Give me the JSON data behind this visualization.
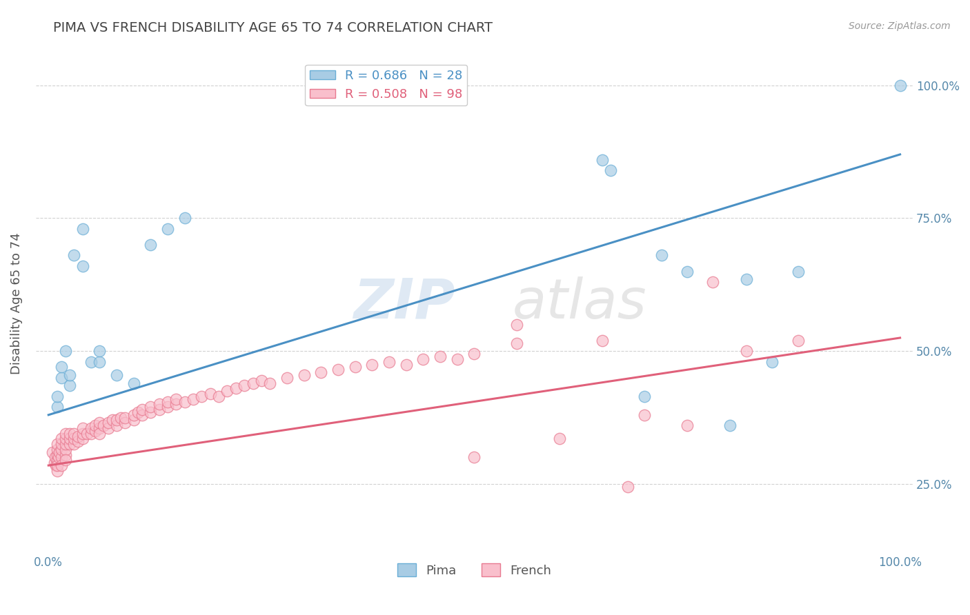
{
  "title": "PIMA VS FRENCH DISABILITY AGE 65 TO 74 CORRELATION CHART",
  "source_text": "Source: ZipAtlas.com",
  "ylabel": "Disability Age 65 to 74",
  "watermark": "ZIPatlas",
  "pima_color": "#a8cce4",
  "french_color": "#f9bfcc",
  "pima_edge_color": "#6aaed6",
  "french_edge_color": "#e87a90",
  "pima_line_color": "#4a90c4",
  "french_line_color": "#e0607a",
  "pima_R": 0.686,
  "pima_N": 28,
  "french_R": 0.508,
  "french_N": 98,
  "xtick_labels": [
    "0.0%",
    "",
    "",
    "",
    "100.0%"
  ],
  "xtick_values": [
    0.0,
    0.25,
    0.5,
    0.75,
    1.0
  ],
  "ytick_values": [
    0.25,
    0.5,
    0.75,
    1.0
  ],
  "right_ytick_labels": [
    "25.0%",
    "50.0%",
    "75.0%",
    "100.0%"
  ],
  "pima_x": [
    0.01,
    0.01,
    0.015,
    0.015,
    0.02,
    0.025,
    0.025,
    0.03,
    0.04,
    0.04,
    0.05,
    0.06,
    0.06,
    0.08,
    0.1,
    0.12,
    0.14,
    0.16,
    0.65,
    0.66,
    0.7,
    0.72,
    0.75,
    0.8,
    0.82,
    0.85,
    0.88,
    1.0
  ],
  "pima_y": [
    0.395,
    0.415,
    0.45,
    0.47,
    0.5,
    0.435,
    0.455,
    0.68,
    0.66,
    0.73,
    0.48,
    0.48,
    0.5,
    0.455,
    0.44,
    0.7,
    0.73,
    0.75,
    0.86,
    0.84,
    0.415,
    0.68,
    0.65,
    0.36,
    0.635,
    0.48,
    0.65,
    1.0
  ],
  "french_x": [
    0.005,
    0.007,
    0.008,
    0.009,
    0.01,
    0.01,
    0.01,
    0.01,
    0.01,
    0.01,
    0.012,
    0.013,
    0.015,
    0.015,
    0.015,
    0.015,
    0.015,
    0.02,
    0.02,
    0.02,
    0.02,
    0.02,
    0.02,
    0.025,
    0.025,
    0.025,
    0.03,
    0.03,
    0.03,
    0.035,
    0.035,
    0.04,
    0.04,
    0.04,
    0.045,
    0.05,
    0.05,
    0.055,
    0.055,
    0.06,
    0.06,
    0.06,
    0.065,
    0.07,
    0.07,
    0.075,
    0.08,
    0.08,
    0.085,
    0.09,
    0.09,
    0.1,
    0.1,
    0.105,
    0.11,
    0.11,
    0.12,
    0.12,
    0.13,
    0.13,
    0.14,
    0.14,
    0.15,
    0.15,
    0.16,
    0.17,
    0.18,
    0.19,
    0.2,
    0.21,
    0.22,
    0.23,
    0.24,
    0.25,
    0.26,
    0.28,
    0.3,
    0.32,
    0.34,
    0.36,
    0.38,
    0.4,
    0.42,
    0.44,
    0.46,
    0.48,
    0.5,
    0.55,
    0.6,
    0.65,
    0.7,
    0.75,
    0.78,
    0.82,
    0.5,
    0.55,
    0.68,
    0.88
  ],
  "french_y": [
    0.31,
    0.29,
    0.3,
    0.285,
    0.295,
    0.305,
    0.315,
    0.325,
    0.275,
    0.285,
    0.3,
    0.31,
    0.3,
    0.315,
    0.325,
    0.335,
    0.285,
    0.305,
    0.315,
    0.325,
    0.335,
    0.345,
    0.295,
    0.325,
    0.335,
    0.345,
    0.325,
    0.335,
    0.345,
    0.33,
    0.34,
    0.335,
    0.345,
    0.355,
    0.345,
    0.345,
    0.355,
    0.35,
    0.36,
    0.355,
    0.365,
    0.345,
    0.36,
    0.355,
    0.365,
    0.37,
    0.36,
    0.37,
    0.375,
    0.365,
    0.375,
    0.37,
    0.38,
    0.385,
    0.38,
    0.39,
    0.385,
    0.395,
    0.39,
    0.4,
    0.395,
    0.405,
    0.4,
    0.41,
    0.405,
    0.41,
    0.415,
    0.42,
    0.415,
    0.425,
    0.43,
    0.435,
    0.44,
    0.445,
    0.44,
    0.45,
    0.455,
    0.46,
    0.465,
    0.47,
    0.475,
    0.48,
    0.475,
    0.485,
    0.49,
    0.485,
    0.495,
    0.515,
    0.335,
    0.52,
    0.38,
    0.36,
    0.63,
    0.5,
    0.3,
    0.55,
    0.245,
    0.52
  ],
  "bg_color": "#ffffff",
  "grid_color": "#cccccc",
  "title_color": "#444444",
  "axis_label_color": "#555555",
  "tick_color": "#5588aa",
  "ylim_low": 0.12,
  "ylim_high": 1.06
}
